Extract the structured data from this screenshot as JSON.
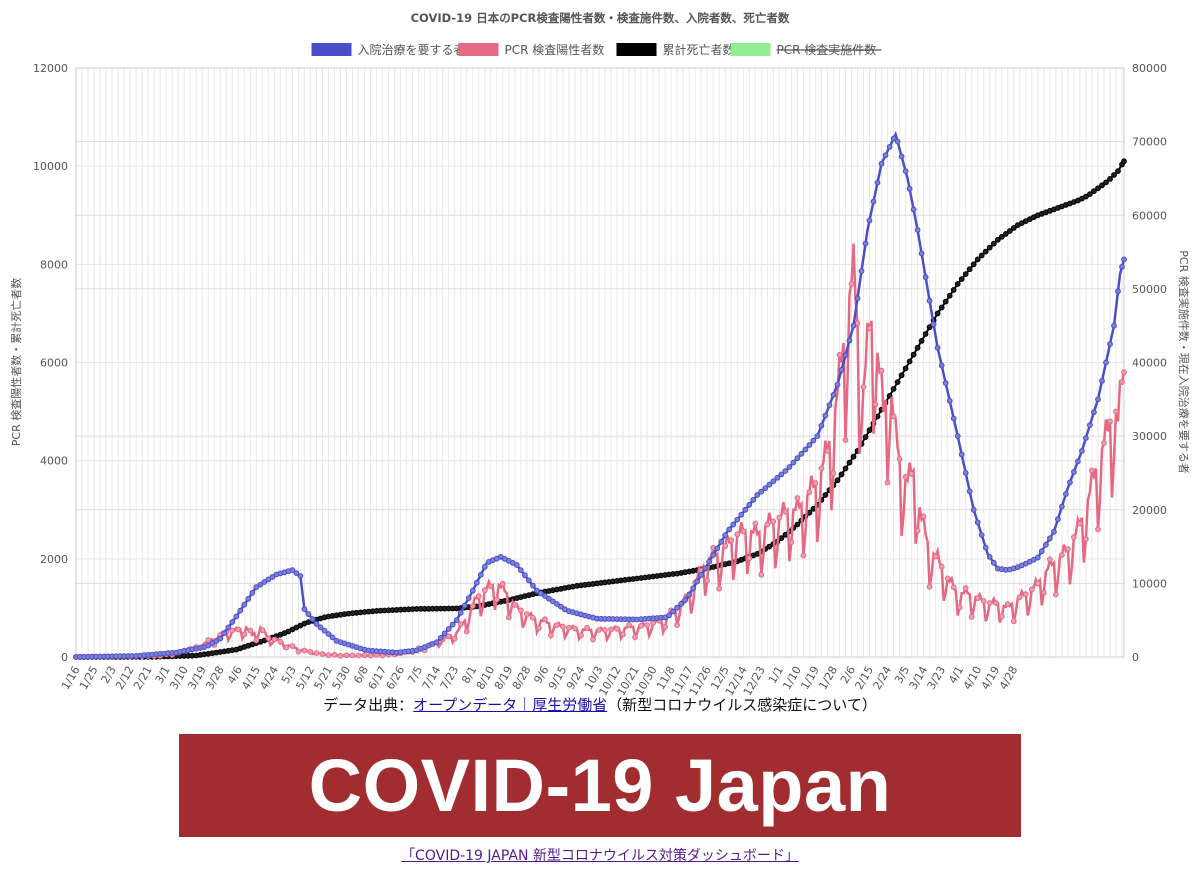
{
  "chart_data": {
    "type": "line",
    "title": "COVID-19 日本のPCR検査陽性者数・検査施件数、入院者数、死亡者数",
    "legend_position": "top",
    "grid": true,
    "y_left_label": "PCR 検査陽性者数・累計死亡者数",
    "y_right_label": "PCR 検査実施件数・現在入院治療を要する者",
    "y_left_range": [
      0,
      12000
    ],
    "y_right_range": [
      0,
      80000
    ],
    "y_left_ticks": [
      "0",
      "2000",
      "4000",
      "6000",
      "8000",
      "10000",
      "12000"
    ],
    "y_right_ticks": [
      "0",
      "10000",
      "20000",
      "30000",
      "40000",
      "50000",
      "60000",
      "70000",
      "80000"
    ],
    "x_tick_labels": [
      "1/16",
      "1/25",
      "2/3",
      "2/12",
      "2/21",
      "3/1",
      "3/10",
      "3/19",
      "3/28",
      "4/6",
      "4/15",
      "4/24",
      "5/3",
      "5/12",
      "5/21",
      "5/30",
      "6/8",
      "6/17",
      "6/26",
      "7/5",
      "7/14",
      "7/23",
      "8/1",
      "8/10",
      "8/19",
      "8/28",
      "9/6",
      "9/15",
      "9/24",
      "10/3",
      "10/12",
      "10/21",
      "10/30",
      "11/8",
      "11/17",
      "11/26",
      "12/5",
      "12/14",
      "12/23",
      "1/1",
      "1/10",
      "1/19",
      "1/28",
      "2/6",
      "2/15",
      "2/24",
      "3/5",
      "3/14",
      "3/23",
      "4/1",
      "4/10",
      "4/19",
      "4/28"
    ],
    "series": [
      {
        "name": "入院治療を要する者",
        "axis": "right",
        "color": "#4a4fc7",
        "fill": "#7c80d9",
        "hidden": false,
        "points": [
          [
            0,
            0
          ],
          [
            30,
            150
          ],
          [
            50,
            600
          ],
          [
            65,
            1400
          ],
          [
            72,
            2500
          ],
          [
            80,
            5500
          ],
          [
            90,
            9500
          ],
          [
            100,
            11200
          ],
          [
            108,
            11800
          ],
          [
            112,
            11000
          ],
          [
            114,
            6500
          ],
          [
            120,
            4500
          ],
          [
            130,
            2200
          ],
          [
            145,
            900
          ],
          [
            160,
            600
          ],
          [
            170,
            900
          ],
          [
            180,
            2000
          ],
          [
            190,
            5000
          ],
          [
            198,
            9000
          ],
          [
            205,
            12800
          ],
          [
            212,
            13600
          ],
          [
            220,
            12500
          ],
          [
            230,
            9000
          ],
          [
            245,
            6300
          ],
          [
            260,
            5200
          ],
          [
            280,
            5100
          ],
          [
            295,
            5400
          ],
          [
            305,
            8000
          ],
          [
            315,
            12500
          ],
          [
            325,
            17000
          ],
          [
            340,
            22000
          ],
          [
            355,
            25500
          ],
          [
            370,
            30000
          ],
          [
            380,
            37000
          ],
          [
            388,
            45000
          ],
          [
            395,
            58000
          ],
          [
            402,
            67000
          ],
          [
            409,
            71000
          ],
          [
            415,
            65000
          ],
          [
            420,
            58000
          ],
          [
            430,
            42000
          ],
          [
            440,
            30000
          ],
          [
            448,
            20000
          ],
          [
            455,
            14000
          ],
          [
            460,
            12000
          ],
          [
            465,
            11800
          ],
          [
            470,
            12200
          ],
          [
            475,
            12800
          ],
          [
            480,
            13500
          ],
          [
            488,
            17000
          ],
          [
            495,
            23000
          ],
          [
            502,
            28000
          ],
          [
            510,
            35000
          ],
          [
            518,
            45000
          ],
          [
            521,
            52000
          ],
          [
            523,
            54000
          ]
        ]
      },
      {
        "name": "PCR 検査陽性者数",
        "axis": "left",
        "color": "#e46a84",
        "fill": "#f29bb0",
        "hidden": false,
        "points": [
          [
            0,
            0
          ],
          [
            40,
            20
          ],
          [
            50,
            80
          ],
          [
            60,
            200
          ],
          [
            70,
            400
          ],
          [
            75,
            520
          ],
          [
            80,
            550
          ],
          [
            85,
            600
          ],
          [
            88,
            450
          ],
          [
            92,
            600
          ],
          [
            96,
            380
          ],
          [
            100,
            350
          ],
          [
            105,
            250
          ],
          [
            110,
            180
          ],
          [
            115,
            120
          ],
          [
            120,
            80
          ],
          [
            125,
            50
          ],
          [
            130,
            40
          ],
          [
            140,
            30
          ],
          [
            150,
            40
          ],
          [
            160,
            60
          ],
          [
            170,
            150
          ],
          [
            180,
            300
          ],
          [
            190,
            500
          ],
          [
            195,
            800
          ],
          [
            200,
            1200
          ],
          [
            205,
            1400
          ],
          [
            210,
            1500
          ],
          [
            215,
            1300
          ],
          [
            220,
            1000
          ],
          [
            228,
            800
          ],
          [
            235,
            700
          ],
          [
            245,
            600
          ],
          [
            255,
            550
          ],
          [
            265,
            550
          ],
          [
            275,
            600
          ],
          [
            285,
            650
          ],
          [
            295,
            800
          ],
          [
            300,
            1000
          ],
          [
            305,
            1200
          ],
          [
            310,
            1600
          ],
          [
            315,
            2000
          ],
          [
            320,
            2100
          ],
          [
            325,
            2300
          ],
          [
            330,
            2500
          ],
          [
            335,
            2600
          ],
          [
            340,
            2500
          ],
          [
            345,
            2700
          ],
          [
            350,
            2800
          ],
          [
            355,
            3000
          ],
          [
            360,
            3000
          ],
          [
            365,
            3300
          ],
          [
            370,
            3600
          ],
          [
            375,
            4200
          ],
          [
            378,
            4800
          ],
          [
            382,
            6000
          ],
          [
            385,
            7200
          ],
          [
            388,
            7800
          ],
          [
            390,
            6800
          ],
          [
            393,
            5500
          ],
          [
            396,
            6700
          ],
          [
            398,
            7000
          ],
          [
            400,
            6200
          ],
          [
            403,
            5000
          ],
          [
            406,
            5700
          ],
          [
            409,
            4500
          ],
          [
            412,
            3800
          ],
          [
            415,
            3600
          ],
          [
            418,
            3800
          ],
          [
            422,
            2800
          ],
          [
            426,
            2200
          ],
          [
            430,
            2000
          ],
          [
            435,
            1600
          ],
          [
            440,
            1300
          ],
          [
            445,
            1300
          ],
          [
            450,
            1200
          ],
          [
            455,
            1100
          ],
          [
            460,
            1100
          ],
          [
            465,
            1000
          ],
          [
            470,
            1200
          ],
          [
            475,
            1300
          ],
          [
            480,
            1500
          ],
          [
            485,
            1800
          ],
          [
            490,
            2000
          ],
          [
            495,
            2200
          ],
          [
            500,
            2600
          ],
          [
            505,
            3200
          ],
          [
            510,
            4000
          ],
          [
            515,
            4600
          ],
          [
            518,
            5200
          ],
          [
            520,
            4800
          ],
          [
            522,
            5600
          ],
          [
            523,
            5800
          ]
        ]
      },
      {
        "name": "累計死亡者数",
        "axis": "left",
        "color": "#000000",
        "fill": "#222222",
        "hidden": false,
        "points": [
          [
            0,
            0
          ],
          [
            40,
            5
          ],
          [
            60,
            30
          ],
          [
            80,
            150
          ],
          [
            95,
            350
          ],
          [
            105,
            500
          ],
          [
            115,
            700
          ],
          [
            125,
            820
          ],
          [
            135,
            880
          ],
          [
            150,
            940
          ],
          [
            170,
            980
          ],
          [
            190,
            990
          ],
          [
            200,
            1030
          ],
          [
            215,
            1150
          ],
          [
            230,
            1300
          ],
          [
            250,
            1450
          ],
          [
            270,
            1550
          ],
          [
            290,
            1650
          ],
          [
            300,
            1700
          ],
          [
            310,
            1770
          ],
          [
            320,
            1850
          ],
          [
            330,
            1950
          ],
          [
            340,
            2100
          ],
          [
            350,
            2350
          ],
          [
            360,
            2700
          ],
          [
            370,
            3100
          ],
          [
            380,
            3600
          ],
          [
            390,
            4200
          ],
          [
            400,
            4900
          ],
          [
            410,
            5600
          ],
          [
            420,
            6300
          ],
          [
            430,
            7000
          ],
          [
            440,
            7600
          ],
          [
            450,
            8100
          ],
          [
            460,
            8500
          ],
          [
            470,
            8800
          ],
          [
            480,
            9000
          ],
          [
            490,
            9150
          ],
          [
            500,
            9300
          ],
          [
            505,
            9400
          ],
          [
            510,
            9550
          ],
          [
            515,
            9700
          ],
          [
            520,
            9900
          ],
          [
            523,
            10100
          ]
        ]
      },
      {
        "name": "PCR 検査実施件数",
        "axis": "right",
        "color": "#90ee90",
        "fill": "#90ee90",
        "hidden": true,
        "points": []
      }
    ]
  },
  "source": {
    "prefix": "データ出典：",
    "link_text": "オープンデータ｜厚生労働省",
    "suffix": "（新型コロナウイルス感染症について）"
  },
  "banner": {
    "text": "COVID-19 Japan",
    "color": "#a12d31"
  },
  "footer": {
    "link_text": "「COVID-19 JAPAN 新型コロナウイルス対策ダッシュボード」"
  }
}
